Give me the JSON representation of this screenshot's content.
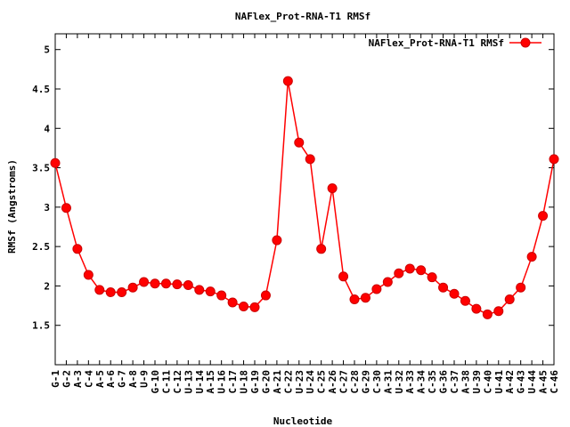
{
  "chart_data": {
    "type": "line",
    "title": "NAFlex_Prot-RNA-T1 RMSf",
    "xlabel": "Nucleotide",
    "ylabel": "RMSf (Angstroms)",
    "ylim": [
      1.0,
      5.2
    ],
    "yticks": [
      1.5,
      2,
      2.5,
      3,
      3.5,
      4,
      4.5,
      5
    ],
    "ytick_labels": [
      "1.5",
      "2",
      "2.5",
      "3",
      "3.5",
      "4",
      "4.5",
      "5"
    ],
    "grid": false,
    "legend_position": "top-right",
    "categories": [
      "G-1",
      "G-2",
      "A-3",
      "C-4",
      "A-5",
      "A-6",
      "G-7",
      "A-8",
      "U-9",
      "G-10",
      "C-11",
      "C-12",
      "U-13",
      "U-14",
      "A-15",
      "U-16",
      "C-17",
      "U-18",
      "G-19",
      "G-20",
      "A-21",
      "C-22",
      "U-23",
      "U-24",
      "C-25",
      "A-26",
      "C-27",
      "C-28",
      "G-29",
      "C-30",
      "A-31",
      "U-32",
      "A-33",
      "A-34",
      "C-35",
      "G-36",
      "C-37",
      "A-38",
      "U-39",
      "C-40",
      "U-41",
      "A-42",
      "G-43",
      "U-44",
      "A-45",
      "C-46"
    ],
    "series": [
      {
        "name": "NAFlex_Prot-RNA-T1 RMSf",
        "color": "#ff0000",
        "values": [
          3.56,
          2.99,
          2.47,
          2.14,
          1.95,
          1.92,
          1.92,
          1.98,
          2.05,
          2.03,
          2.03,
          2.02,
          2.01,
          1.95,
          1.93,
          1.88,
          1.79,
          1.74,
          1.73,
          1.88,
          2.58,
          4.6,
          3.82,
          3.61,
          2.47,
          3.24,
          2.12,
          1.83,
          1.85,
          1.96,
          2.05,
          2.16,
          2.22,
          2.2,
          2.11,
          1.98,
          1.9,
          1.81,
          1.71,
          1.64,
          1.68,
          1.83,
          1.98,
          2.37,
          2.89,
          3.61
        ]
      }
    ]
  }
}
